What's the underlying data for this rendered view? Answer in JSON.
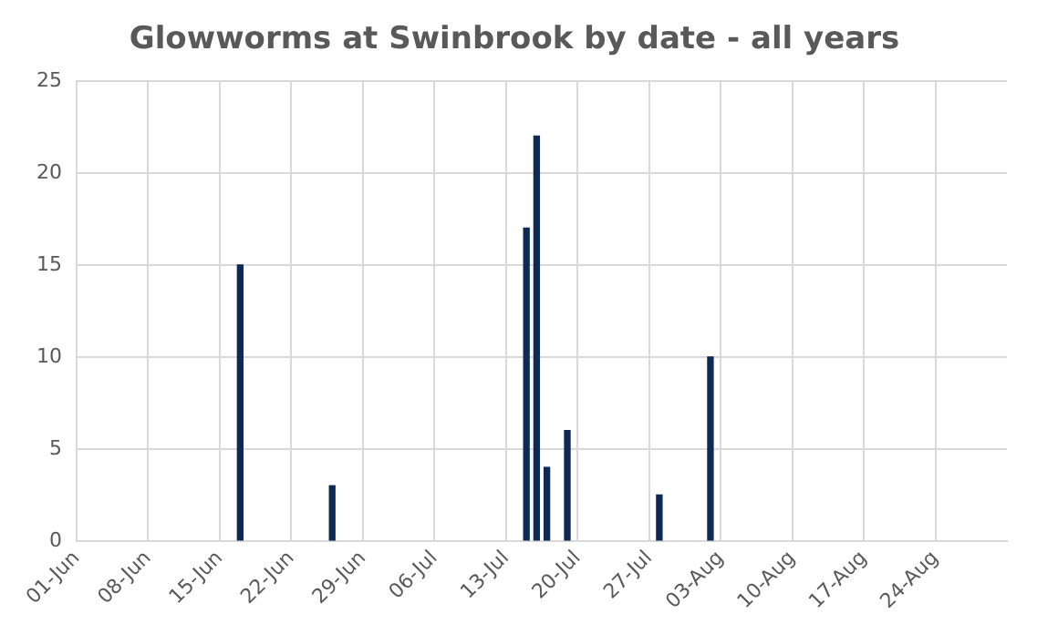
{
  "chart_data": {
    "type": "bar",
    "title": "Glowworms at Swinbrook by date - all years",
    "x": [
      "--06-17",
      "--06-26",
      "--07-15",
      "--07-16",
      "--07-17",
      "--07-19",
      "--07-28",
      "--08-02"
    ],
    "values": [
      15,
      3,
      17,
      22,
      4,
      6,
      2.5,
      10
    ],
    "color": "#0e2a52",
    "xlim": [
      "--06-01",
      "--08-31"
    ],
    "xticks": [
      {
        "value": "--06-01",
        "label": "01-Jun"
      },
      {
        "value": "--06-08",
        "label": "08-Jun"
      },
      {
        "value": "--06-15",
        "label": "15-Jun"
      },
      {
        "value": "--06-22",
        "label": "22-Jun"
      },
      {
        "value": "--06-29",
        "label": "29-Jun"
      },
      {
        "value": "--07-06",
        "label": "06-Jul"
      },
      {
        "value": "--07-13",
        "label": "13-Jul"
      },
      {
        "value": "--07-20",
        "label": "20-Jul"
      },
      {
        "value": "--07-27",
        "label": "27-Jul"
      },
      {
        "value": "--08-03",
        "label": "03-Aug"
      },
      {
        "value": "--08-10",
        "label": "10-Aug"
      },
      {
        "value": "--08-17",
        "label": "17-Aug"
      },
      {
        "value": "--08-24",
        "label": "24-Aug"
      }
    ],
    "ylim": [
      0,
      25
    ],
    "yticks": [
      0,
      5,
      10,
      15,
      20,
      25
    ],
    "grid": true,
    "legend": false
  }
}
